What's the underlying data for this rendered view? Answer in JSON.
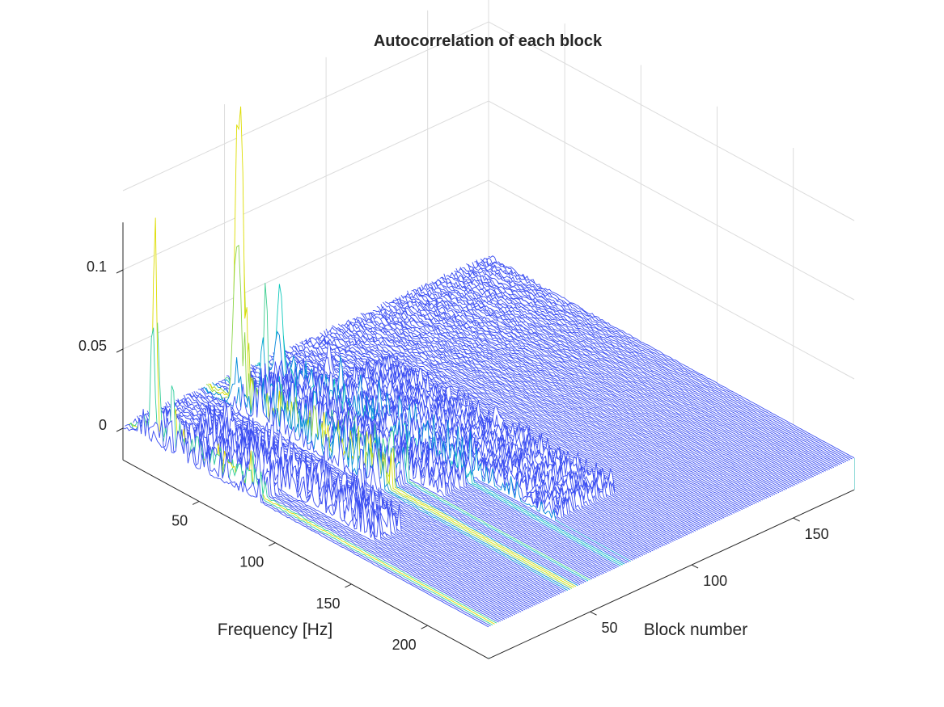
{
  "chart_data": {
    "type": "waterfall",
    "title": "Autocorrelation of each block",
    "xlabel": "Frequency [Hz]",
    "ylabel": "Block number",
    "zlabel": "",
    "x_ticks": [
      50,
      100,
      150,
      200
    ],
    "y_ticks": [
      50,
      100,
      150
    ],
    "z_ticks": [
      {
        "value": 0,
        "label": "0"
      },
      {
        "value": 0.05,
        "label": "0.05"
      },
      {
        "value": 0.1,
        "label": "0.1"
      }
    ],
    "xlim": [
      0,
      240
    ],
    "ylim": [
      0,
      180
    ],
    "zlim": [
      -0.02,
      0.13
    ],
    "colormap": [
      "#0000ff",
      "#00c8c8",
      "#dddd00"
    ],
    "wall_color": "#00d2c8",
    "grid": true,
    "peaks": [
      {
        "x": 17,
        "y": 3,
        "z": 0.143,
        "w": 1.6
      },
      {
        "x": 30,
        "y": 2,
        "z": 0.05,
        "w": 1.0
      },
      {
        "x": 19,
        "y": 42,
        "z": 0.178,
        "w": 2.2
      },
      {
        "x": 22,
        "y": 42,
        "z": 0.16,
        "w": 1.5
      },
      {
        "x": 25,
        "y": 42,
        "z": 0.07,
        "w": 1.0
      },
      {
        "x": 27,
        "y": 50,
        "z": 0.06,
        "w": 1.5
      },
      {
        "x": 15,
        "y": 66,
        "z": 0.06,
        "w": 2.5
      },
      {
        "x": 26,
        "y": 82,
        "z": 0.02,
        "w": 1.5
      },
      {
        "x": 80,
        "y": 3,
        "z": 0.025,
        "w": 1.0
      },
      {
        "x": 110,
        "y": 35,
        "z": 0.035,
        "w": 1.0
      },
      {
        "x": 115,
        "y": 38,
        "z": 0.03,
        "w": 1.0
      }
    ],
    "ridges": [
      {
        "x0": 20,
        "x1": 120,
        "y0": 38,
        "y1": 50,
        "z": 0.015
      },
      {
        "x0": 20,
        "x1": 140,
        "y0": 52,
        "y1": 70,
        "z": 0.01
      },
      {
        "x0": 30,
        "x1": 150,
        "y0": 12,
        "y1": 25,
        "z": 0.012
      },
      {
        "x0": 40,
        "x1": 190,
        "y0": 70,
        "y1": 100,
        "z": 0.007
      },
      {
        "x0": 10,
        "x1": 90,
        "y0": 0,
        "y1": 10,
        "z": 0.01
      }
    ]
  }
}
